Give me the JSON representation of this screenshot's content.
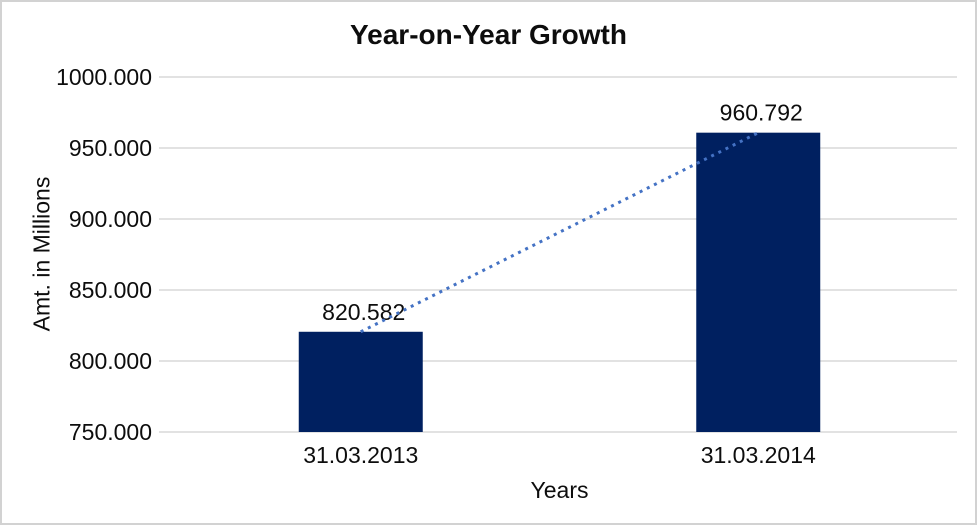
{
  "chart_data": {
    "type": "bar",
    "title": "Year-on-Year Growth",
    "xlabel": "Years",
    "ylabel": "Amt. in Millions",
    "categories": [
      "31.03.2013",
      "31.03.2014"
    ],
    "values": [
      820.582,
      960.792
    ],
    "data_labels": [
      "820.582",
      "960.792"
    ],
    "ylim": [
      750,
      1000
    ],
    "ytick_step": 50,
    "ytick_labels": [
      "750.000",
      "800.000",
      "850.000",
      "900.000",
      "950.000",
      "1000.000"
    ],
    "grid": "horizontal",
    "legend": "none",
    "trendline": {
      "style": "dotted",
      "from_category_index": 0,
      "to_category_index": 1
    },
    "colors": {
      "bar": "#002060",
      "trendline": "#4472C4",
      "gridline": "#D9D9D9",
      "axis_line": "#D9D9D9",
      "text": "#0D0D0D",
      "frame_border": "#D2D2D2",
      "background": "#FFFFFF"
    }
  }
}
